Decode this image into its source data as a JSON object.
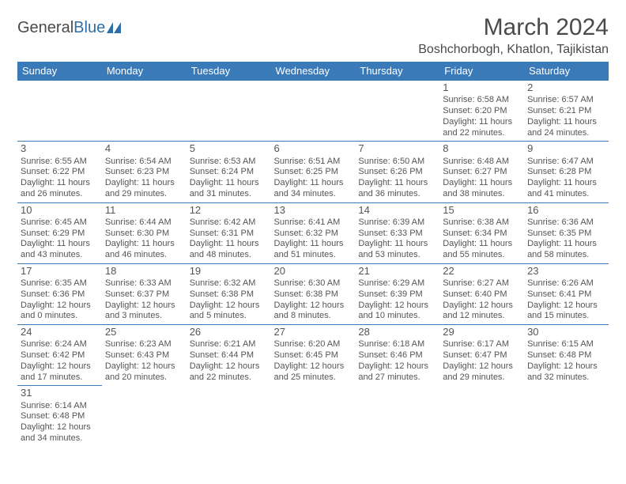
{
  "logo": {
    "text1": "General",
    "text2": "Blue"
  },
  "header": {
    "title": "March 2024",
    "location": "Boshchorbogh, Khatlon, Tajikistan"
  },
  "colors": {
    "header_bg": "#3a7ab8",
    "header_fg": "#ffffff",
    "cell_border": "#3a7ab8",
    "text": "#555555",
    "logo_gray": "#4a4a4a",
    "logo_blue": "#2f6fa7",
    "bg": "#ffffff"
  },
  "day_labels": [
    "Sunday",
    "Monday",
    "Tuesday",
    "Wednesday",
    "Thursday",
    "Friday",
    "Saturday"
  ],
  "weeks": [
    [
      null,
      null,
      null,
      null,
      null,
      {
        "n": "1",
        "sr": "Sunrise: 6:58 AM",
        "ss": "Sunset: 6:20 PM",
        "dl": "Daylight: 11 hours and 22 minutes."
      },
      {
        "n": "2",
        "sr": "Sunrise: 6:57 AM",
        "ss": "Sunset: 6:21 PM",
        "dl": "Daylight: 11 hours and 24 minutes."
      }
    ],
    [
      {
        "n": "3",
        "sr": "Sunrise: 6:55 AM",
        "ss": "Sunset: 6:22 PM",
        "dl": "Daylight: 11 hours and 26 minutes."
      },
      {
        "n": "4",
        "sr": "Sunrise: 6:54 AM",
        "ss": "Sunset: 6:23 PM",
        "dl": "Daylight: 11 hours and 29 minutes."
      },
      {
        "n": "5",
        "sr": "Sunrise: 6:53 AM",
        "ss": "Sunset: 6:24 PM",
        "dl": "Daylight: 11 hours and 31 minutes."
      },
      {
        "n": "6",
        "sr": "Sunrise: 6:51 AM",
        "ss": "Sunset: 6:25 PM",
        "dl": "Daylight: 11 hours and 34 minutes."
      },
      {
        "n": "7",
        "sr": "Sunrise: 6:50 AM",
        "ss": "Sunset: 6:26 PM",
        "dl": "Daylight: 11 hours and 36 minutes."
      },
      {
        "n": "8",
        "sr": "Sunrise: 6:48 AM",
        "ss": "Sunset: 6:27 PM",
        "dl": "Daylight: 11 hours and 38 minutes."
      },
      {
        "n": "9",
        "sr": "Sunrise: 6:47 AM",
        "ss": "Sunset: 6:28 PM",
        "dl": "Daylight: 11 hours and 41 minutes."
      }
    ],
    [
      {
        "n": "10",
        "sr": "Sunrise: 6:45 AM",
        "ss": "Sunset: 6:29 PM",
        "dl": "Daylight: 11 hours and 43 minutes."
      },
      {
        "n": "11",
        "sr": "Sunrise: 6:44 AM",
        "ss": "Sunset: 6:30 PM",
        "dl": "Daylight: 11 hours and 46 minutes."
      },
      {
        "n": "12",
        "sr": "Sunrise: 6:42 AM",
        "ss": "Sunset: 6:31 PM",
        "dl": "Daylight: 11 hours and 48 minutes."
      },
      {
        "n": "13",
        "sr": "Sunrise: 6:41 AM",
        "ss": "Sunset: 6:32 PM",
        "dl": "Daylight: 11 hours and 51 minutes."
      },
      {
        "n": "14",
        "sr": "Sunrise: 6:39 AM",
        "ss": "Sunset: 6:33 PM",
        "dl": "Daylight: 11 hours and 53 minutes."
      },
      {
        "n": "15",
        "sr": "Sunrise: 6:38 AM",
        "ss": "Sunset: 6:34 PM",
        "dl": "Daylight: 11 hours and 55 minutes."
      },
      {
        "n": "16",
        "sr": "Sunrise: 6:36 AM",
        "ss": "Sunset: 6:35 PM",
        "dl": "Daylight: 11 hours and 58 minutes."
      }
    ],
    [
      {
        "n": "17",
        "sr": "Sunrise: 6:35 AM",
        "ss": "Sunset: 6:36 PM",
        "dl": "Daylight: 12 hours and 0 minutes."
      },
      {
        "n": "18",
        "sr": "Sunrise: 6:33 AM",
        "ss": "Sunset: 6:37 PM",
        "dl": "Daylight: 12 hours and 3 minutes."
      },
      {
        "n": "19",
        "sr": "Sunrise: 6:32 AM",
        "ss": "Sunset: 6:38 PM",
        "dl": "Daylight: 12 hours and 5 minutes."
      },
      {
        "n": "20",
        "sr": "Sunrise: 6:30 AM",
        "ss": "Sunset: 6:38 PM",
        "dl": "Daylight: 12 hours and 8 minutes."
      },
      {
        "n": "21",
        "sr": "Sunrise: 6:29 AM",
        "ss": "Sunset: 6:39 PM",
        "dl": "Daylight: 12 hours and 10 minutes."
      },
      {
        "n": "22",
        "sr": "Sunrise: 6:27 AM",
        "ss": "Sunset: 6:40 PM",
        "dl": "Daylight: 12 hours and 12 minutes."
      },
      {
        "n": "23",
        "sr": "Sunrise: 6:26 AM",
        "ss": "Sunset: 6:41 PM",
        "dl": "Daylight: 12 hours and 15 minutes."
      }
    ],
    [
      {
        "n": "24",
        "sr": "Sunrise: 6:24 AM",
        "ss": "Sunset: 6:42 PM",
        "dl": "Daylight: 12 hours and 17 minutes."
      },
      {
        "n": "25",
        "sr": "Sunrise: 6:23 AM",
        "ss": "Sunset: 6:43 PM",
        "dl": "Daylight: 12 hours and 20 minutes."
      },
      {
        "n": "26",
        "sr": "Sunrise: 6:21 AM",
        "ss": "Sunset: 6:44 PM",
        "dl": "Daylight: 12 hours and 22 minutes."
      },
      {
        "n": "27",
        "sr": "Sunrise: 6:20 AM",
        "ss": "Sunset: 6:45 PM",
        "dl": "Daylight: 12 hours and 25 minutes."
      },
      {
        "n": "28",
        "sr": "Sunrise: 6:18 AM",
        "ss": "Sunset: 6:46 PM",
        "dl": "Daylight: 12 hours and 27 minutes."
      },
      {
        "n": "29",
        "sr": "Sunrise: 6:17 AM",
        "ss": "Sunset: 6:47 PM",
        "dl": "Daylight: 12 hours and 29 minutes."
      },
      {
        "n": "30",
        "sr": "Sunrise: 6:15 AM",
        "ss": "Sunset: 6:48 PM",
        "dl": "Daylight: 12 hours and 32 minutes."
      }
    ],
    [
      {
        "n": "31",
        "sr": "Sunrise: 6:14 AM",
        "ss": "Sunset: 6:48 PM",
        "dl": "Daylight: 12 hours and 34 minutes."
      },
      null,
      null,
      null,
      null,
      null,
      null
    ]
  ]
}
